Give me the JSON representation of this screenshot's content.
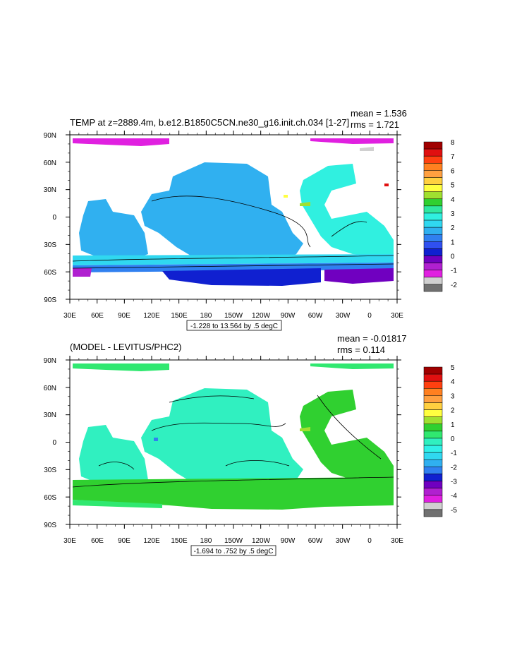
{
  "panels": [
    {
      "title": "TEMP at z=2889.4m, b.e12.B1850C5CN.ne30_g16.init.ch.034 [1-27]",
      "mean_label": "mean = 1.536",
      "rms_label": "rms = 1.721",
      "info_label": "-1.228 to 13.564 by .5 degC",
      "colorbar_labels": [
        "8",
        "7",
        "6",
        "5",
        "4",
        "3",
        "2",
        "1",
        "0",
        "-1",
        "-2"
      ],
      "colorbar_colors": [
        "#a00000",
        "#e01010",
        "#ff4010",
        "#ff8020",
        "#ffa040",
        "#ffd040",
        "#ffff40",
        "#a0e030",
        "#30d030",
        "#30e8a0",
        "#30f0e0",
        "#30d8f0",
        "#30b0f0",
        "#3080f0",
        "#3050f0",
        "#1020d0",
        "#7000c0",
        "#b020d0",
        "#e020e0",
        "#d0d0d0",
        "#707070"
      ]
    },
    {
      "title": "(MODEL - LEVITUS/PHC2)",
      "mean_label": "mean = -0.01817",
      "rms_label": "rms = 0.114",
      "info_label": "-1.694 to .752 by .5 degC",
      "colorbar_labels": [
        "5",
        "4",
        "3",
        "2",
        "1",
        "0",
        "-1",
        "-2",
        "-3",
        "-4",
        "-5"
      ],
      "colorbar_colors": [
        "#a00000",
        "#e01010",
        "#ff4010",
        "#ff8020",
        "#ffa040",
        "#ffd040",
        "#ffff40",
        "#a0e030",
        "#30d030",
        "#30e870",
        "#30f0c0",
        "#30f0e8",
        "#30d8f0",
        "#30b0f0",
        "#3080f0",
        "#1020d0",
        "#7000c0",
        "#b020d0",
        "#e020e0",
        "#d0d0d0",
        "#707070"
      ]
    }
  ],
  "lat_labels": [
    "90N",
    "60N",
    "30N",
    "0",
    "30S",
    "60S",
    "90S"
  ],
  "lon_labels": [
    "30E",
    "60E",
    "90E",
    "120E",
    "150E",
    "180",
    "150W",
    "120W",
    "90W",
    "60W",
    "30W",
    "0",
    "30E"
  ]
}
